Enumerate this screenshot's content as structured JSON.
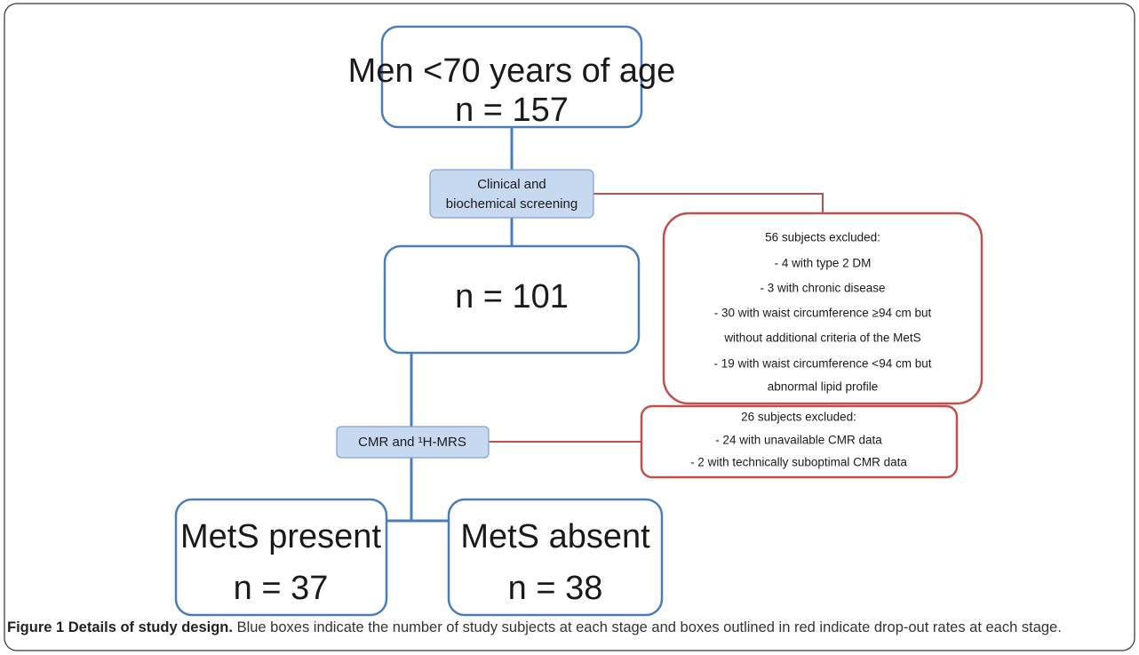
{
  "nodes": [
    {
      "label": "Men <70 years of age",
      "n": "n = 157"
    },
    {
      "n": "n = 101"
    },
    {
      "label": "MetS present",
      "n": "n = 37"
    },
    {
      "label": "MetS absent",
      "n": "n = 38"
    }
  ],
  "steps": [
    {
      "lines": [
        "Clinical and",
        "biochemical screening"
      ]
    },
    {
      "lines": [
        "CMR and ¹H-MRS"
      ]
    }
  ],
  "exclusions": [
    {
      "title": "56 subjects excluded:",
      "lines": [
        "- 4 with type 2 DM",
        "- 3 with chronic disease",
        "- 30 with waist circumference ≥94 cm but",
        "without additional criteria of the MetS",
        "- 19 with waist circumference <94 cm but",
        "abnormal lipid profile"
      ]
    },
    {
      "title": "26 subjects excluded:",
      "lines": [
        "- 24 with unavailable CMR data",
        "- 2 with technically suboptimal CMR data"
      ]
    }
  ],
  "caption": {
    "title": "Figure 1 Details of study design.",
    "text": "Blue boxes indicate the number of study subjects at each stage and boxes outlined in red indicate drop-out rates at each stage."
  }
}
